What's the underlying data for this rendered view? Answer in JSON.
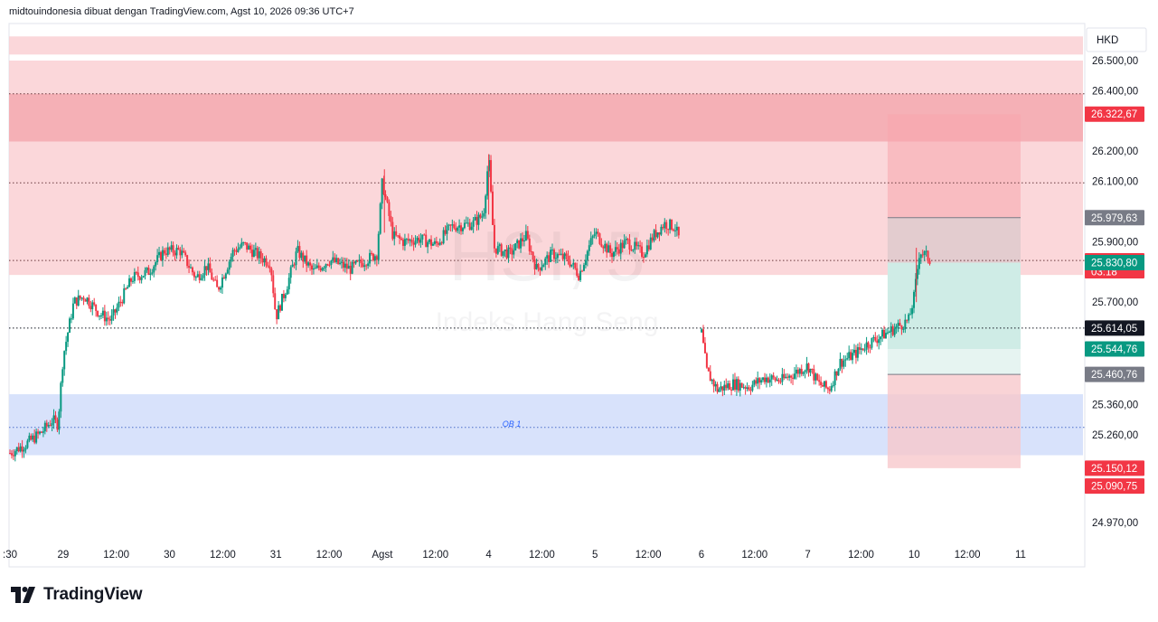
{
  "header": {
    "text": "midtouindonesia dibuat dengan TradingView.com, Agst 10, 2026 09:36 UTC+7"
  },
  "currency": "HKD",
  "watermark": {
    "symbol": "HSI, 5",
    "name": "Indeks Hang Seng"
  },
  "brand": {
    "name": "TradingView"
  },
  "colors": {
    "up": "#089981",
    "down": "#f23645",
    "supply_zone": "#f9c9cd",
    "supply_zone_strong": "#f4a6ad",
    "ob_zone": "#d6e0fb",
    "target_zone": "#cfece6",
    "stop_zone": "#f7c8cc"
  },
  "annotations": {
    "ob_label": "OB 1"
  },
  "chart_data": {
    "type": "candlestick",
    "interval": "5m",
    "y_range": [
      24880,
      26580
    ],
    "y_ticks": [
      "26.500,00",
      "26.400,00",
      "26.200,00",
      "26.100,00",
      "25.900,00",
      "25.700,00",
      "25.360,00",
      "25.260,00",
      "24.970,00"
    ],
    "y_tick_values": [
      26500,
      26400,
      26200,
      26100,
      25900,
      25700,
      25360,
      25260,
      24970
    ],
    "x_ticks": [
      {
        "label": ":30",
        "pos": 0.0
      },
      {
        "label": "29",
        "pos": 0.5
      },
      {
        "label": "12:00",
        "pos": 1.0
      },
      {
        "label": "30",
        "pos": 1.5
      },
      {
        "label": "12:00",
        "pos": 2.0
      },
      {
        "label": "31",
        "pos": 2.5
      },
      {
        "label": "12:00",
        "pos": 3.0
      },
      {
        "label": "Agst",
        "pos": 3.5
      },
      {
        "label": "12:00",
        "pos": 4.0
      },
      {
        "label": "4",
        "pos": 4.5
      },
      {
        "label": "12:00",
        "pos": 5.0
      },
      {
        "label": "5",
        "pos": 5.5
      },
      {
        "label": "12:00",
        "pos": 6.0
      },
      {
        "label": "6",
        "pos": 6.5
      },
      {
        "label": "12:00",
        "pos": 7.0
      },
      {
        "label": "7",
        "pos": 7.5
      },
      {
        "label": "12:00",
        "pos": 8.0
      },
      {
        "label": "10",
        "pos": 8.5
      },
      {
        "label": "12:00",
        "pos": 9.0
      },
      {
        "label": "11",
        "pos": 9.5
      }
    ],
    "price_tags": [
      {
        "value": "26.322,67",
        "price": 26322.67,
        "color": "#f23645"
      },
      {
        "value": "25.979,63",
        "price": 25979.63,
        "color": "#787b86"
      },
      {
        "value": "25.838,37",
        "countdown": "03:18",
        "price": 25838.37,
        "color": "#f23645"
      },
      {
        "value": "25.830,80",
        "price": 25830.8,
        "color": "#089981"
      },
      {
        "value": "25.614,05",
        "price": 25614.05,
        "color": "#131722"
      },
      {
        "value": "25.544,76",
        "price": 25544.76,
        "color": "#089981"
      },
      {
        "value": "25.460,76",
        "price": 25460.76,
        "color": "#787b86"
      },
      {
        "value": "25.150,12",
        "price": 25150.12,
        "color": "#f23645"
      },
      {
        "value": "25.090,75",
        "price": 25090.75,
        "color": "#f23645"
      }
    ],
    "zones": [
      {
        "name": "supply-zone-top",
        "from": 26520,
        "to": 26580
      },
      {
        "name": "supply-zone",
        "from": 25790,
        "to": 26500
      },
      {
        "name": "supply-zone-strong",
        "from": 26232,
        "to": 26390
      },
      {
        "name": "ob-zone",
        "from": 25193,
        "to": 25395
      }
    ],
    "levels": [
      {
        "price": 26390
      },
      {
        "price": 26095
      },
      {
        "price": 25838
      },
      {
        "price": 25614
      },
      {
        "price": 25285
      }
    ],
    "position": {
      "t_from": 8.25,
      "t_to": 9.5,
      "entry": 25460.76,
      "target_zone_top": 25830.8,
      "target_zone_bottom": 25544.76,
      "stop_top": 25979.63,
      "upper_bound": 26322.67,
      "lower_bound": 25150.12,
      "ob_line": 25285
    },
    "anchors": [
      [
        0.0,
        25200
      ],
      [
        0.15,
        25230
      ],
      [
        0.3,
        25270
      ],
      [
        0.4,
        25310
      ],
      [
        0.45,
        25295
      ],
      [
        0.5,
        25520
      ],
      [
        0.6,
        25700
      ],
      [
        0.7,
        25720
      ],
      [
        0.85,
        25660
      ],
      [
        0.95,
        25640
      ],
      [
        1.15,
        25780
      ],
      [
        1.3,
        25800
      ],
      [
        1.45,
        25870
      ],
      [
        1.6,
        25870
      ],
      [
        1.75,
        25780
      ],
      [
        1.85,
        25820
      ],
      [
        1.95,
        25740
      ],
      [
        2.1,
        25870
      ],
      [
        2.2,
        25890
      ],
      [
        2.35,
        25850
      ],
      [
        2.45,
        25830
      ],
      [
        2.5,
        25650
      ],
      [
        2.6,
        25750
      ],
      [
        2.7,
        25870
      ],
      [
        2.85,
        25800
      ],
      [
        3.0,
        25840
      ],
      [
        3.2,
        25810
      ],
      [
        3.35,
        25840
      ],
      [
        3.45,
        25860
      ],
      [
        3.5,
        26100
      ],
      [
        3.6,
        25920
      ],
      [
        3.7,
        25900
      ],
      [
        3.85,
        25910
      ],
      [
        4.0,
        25890
      ],
      [
        4.15,
        25950
      ],
      [
        4.35,
        25960
      ],
      [
        4.45,
        25990
      ],
      [
        4.5,
        26180
      ],
      [
        4.55,
        25880
      ],
      [
        4.7,
        25860
      ],
      [
        4.85,
        25920
      ],
      [
        4.95,
        25810
      ],
      [
        5.1,
        25860
      ],
      [
        5.25,
        25840
      ],
      [
        5.35,
        25790
      ],
      [
        5.45,
        25890
      ],
      [
        5.5,
        25930
      ],
      [
        5.65,
        25860
      ],
      [
        5.8,
        25900
      ],
      [
        5.95,
        25860
      ],
      [
        6.05,
        25920
      ],
      [
        6.15,
        25960
      ],
      [
        6.25,
        25950
      ],
      [
        6.3,
        25900
      ],
      [
        6.5,
        25600
      ],
      [
        6.55,
        25470
      ],
      [
        6.65,
        25410
      ],
      [
        6.8,
        25430
      ],
      [
        6.95,
        25420
      ],
      [
        7.1,
        25450
      ],
      [
        7.25,
        25440
      ],
      [
        7.4,
        25470
      ],
      [
        7.5,
        25490
      ],
      [
        7.6,
        25430
      ],
      [
        7.7,
        25410
      ],
      [
        7.8,
        25500
      ],
      [
        7.95,
        25530
      ],
      [
        8.05,
        25560
      ],
      [
        8.2,
        25590
      ],
      [
        8.35,
        25620
      ],
      [
        8.45,
        25640
      ],
      [
        8.5,
        25720
      ],
      [
        8.55,
        25870
      ],
      [
        8.62,
        25850
      ],
      [
        8.65,
        25838
      ]
    ]
  }
}
